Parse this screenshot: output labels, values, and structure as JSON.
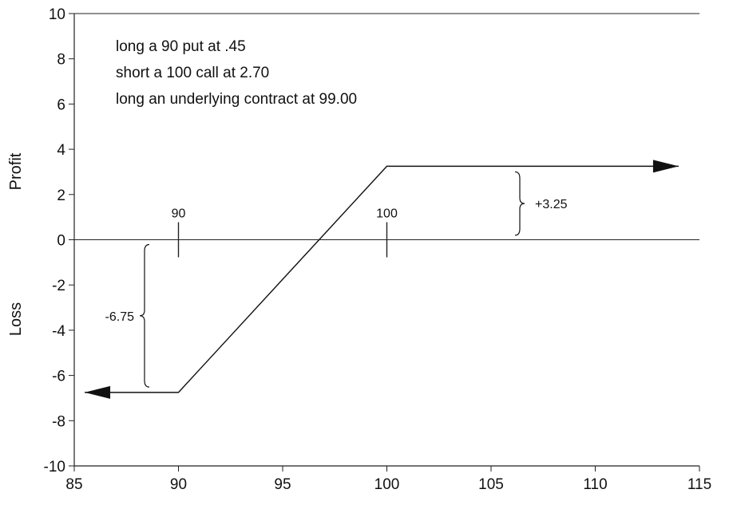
{
  "chart_data": {
    "type": "line",
    "xlim": [
      85,
      115
    ],
    "ylim": [
      -10,
      10
    ],
    "x_ticks": [
      85,
      90,
      95,
      100,
      105,
      110,
      115
    ],
    "y_ticks": [
      10,
      8,
      6,
      4,
      2,
      0,
      -2,
      -4,
      -6,
      -8,
      -10
    ],
    "ylabel_upper": "Profit",
    "ylabel_lower": "Loss",
    "grid": false,
    "series": [
      {
        "x": [
          85.5,
          90,
          100,
          114
        ],
        "y": [
          -6.75,
          -6.75,
          3.25,
          3.25
        ]
      }
    ],
    "notes": [
      "long a 90 put at .45",
      "short a 100 call at 2.70",
      "long an underlying contract at 99.00"
    ],
    "strike_markers": [
      {
        "x": 90,
        "label": "90"
      },
      {
        "x": 100,
        "label": "100"
      }
    ],
    "annotations": [
      {
        "label": "-6.75",
        "from_y": -6.3,
        "to_y": 0
      },
      {
        "label": "+3.25",
        "from_y": 0.2,
        "to_y": 3.0
      }
    ]
  }
}
